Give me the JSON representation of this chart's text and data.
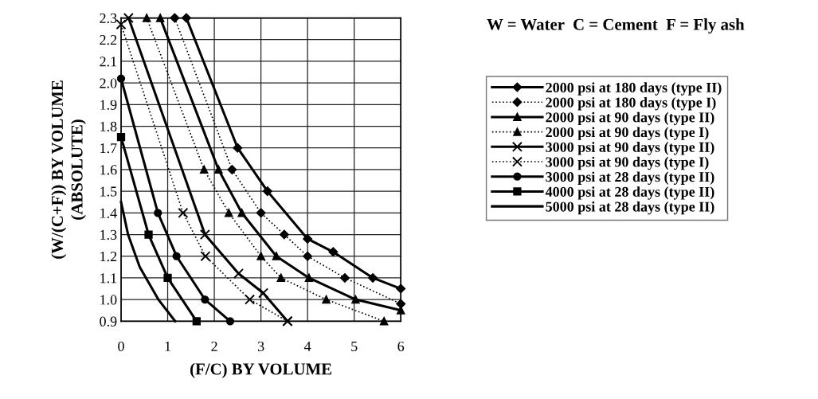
{
  "chart_data": {
    "type": "line",
    "xlabel": "(F/C) BY VOLUME",
    "ylabel": "(W/(C+F)) BY VOLUME\n(ABSOLUTE)",
    "annotations": [
      "W = Water  C = Cement  F = Fly ash"
    ],
    "xlim": [
      0,
      6
    ],
    "xticks": [
      0,
      1,
      2,
      3,
      4,
      5,
      6
    ],
    "ylim": [
      0.9,
      2.3
    ],
    "yticks": [
      0.9,
      {
        "value": 1.0,
        "label": "1.0"
      },
      1.1,
      1.2,
      1.3,
      1.4,
      1.5,
      1.6,
      1.7,
      1.8,
      1.9,
      {
        "value": 2.0,
        "label": "2.0"
      },
      2.1,
      2.2,
      2.3
    ],
    "grid": true,
    "legend": "right",
    "series": [
      {
        "name": "2000 psi at 180 days (type II)",
        "color": "#000000",
        "marker": "diamond",
        "line_style": "solid",
        "x": [
          1.4,
          2.5,
          3.14,
          4.0,
          4.55,
          5.4,
          6.0
        ],
        "values": [
          2.3,
          1.7,
          1.5,
          1.28,
          1.22,
          1.1,
          1.05
        ]
      },
      {
        "name": "2000 psi at 180 days (type I)",
        "color": "#000000",
        "marker": "diamond",
        "line_style": "dotted",
        "x": [
          1.15,
          2.38,
          3.0,
          3.5,
          4.0,
          4.8,
          6.0
        ],
        "values": [
          2.3,
          1.6,
          1.4,
          1.3,
          1.2,
          1.1,
          0.98
        ]
      },
      {
        "name": "2000 psi at 90 days (type II)",
        "color": "#000000",
        "marker": "triangle",
        "line_style": "solid",
        "x": [
          0.84,
          2.09,
          2.59,
          3.33,
          4.03,
          5.03,
          6.0
        ],
        "values": [
          2.3,
          1.6,
          1.4,
          1.2,
          1.1,
          1.0,
          0.95
        ]
      },
      {
        "name": "2000 psi at 90 days (type I)",
        "color": "#000000",
        "marker": "triangle",
        "line_style": "dotted",
        "x": [
          0.55,
          1.78,
          2.31,
          3.0,
          3.43,
          4.4,
          5.64
        ],
        "values": [
          2.3,
          1.6,
          1.4,
          1.2,
          1.1,
          1.0,
          0.9
        ]
      },
      {
        "name": "3000 psi at 90 days (type II)",
        "color": "#000000",
        "marker": "cross",
        "line_style": "solid",
        "x": [
          0.16,
          1.8,
          2.52,
          3.05,
          3.57
        ],
        "values": [
          2.3,
          1.3,
          1.12,
          1.03,
          0.9
        ]
      },
      {
        "name": "3000 psi at 90 days (type I)",
        "color": "#000000",
        "marker": "cross",
        "line_style": "dotted",
        "x": [
          0,
          1.33,
          1.81,
          2.76,
          3.57
        ],
        "values": [
          2.27,
          1.4,
          1.2,
          1.0,
          0.9
        ]
      },
      {
        "name": "3000 psi at 28 days (type II)",
        "color": "#000000",
        "marker": "circle",
        "line_style": "solid",
        "x": [
          0,
          0.79,
          1.19,
          1.8,
          2.34
        ],
        "values": [
          2.02,
          1.4,
          1.2,
          1.0,
          0.9
        ]
      },
      {
        "name": "4000 psi at 28 days (type II)",
        "color": "#000000",
        "marker": "square",
        "line_style": "solid",
        "x": [
          0,
          0.59,
          1.0,
          1.62
        ],
        "values": [
          1.75,
          1.3,
          1.1,
          0.9
        ]
      },
      {
        "name": "5000 psi at 28 days (type II)",
        "color": "#000000",
        "marker": "none",
        "line_style": "solid",
        "x": [
          0,
          0.15,
          0.4,
          0.8,
          1.16
        ],
        "values": [
          1.45,
          1.3,
          1.15,
          1.0,
          0.9
        ]
      }
    ]
  }
}
